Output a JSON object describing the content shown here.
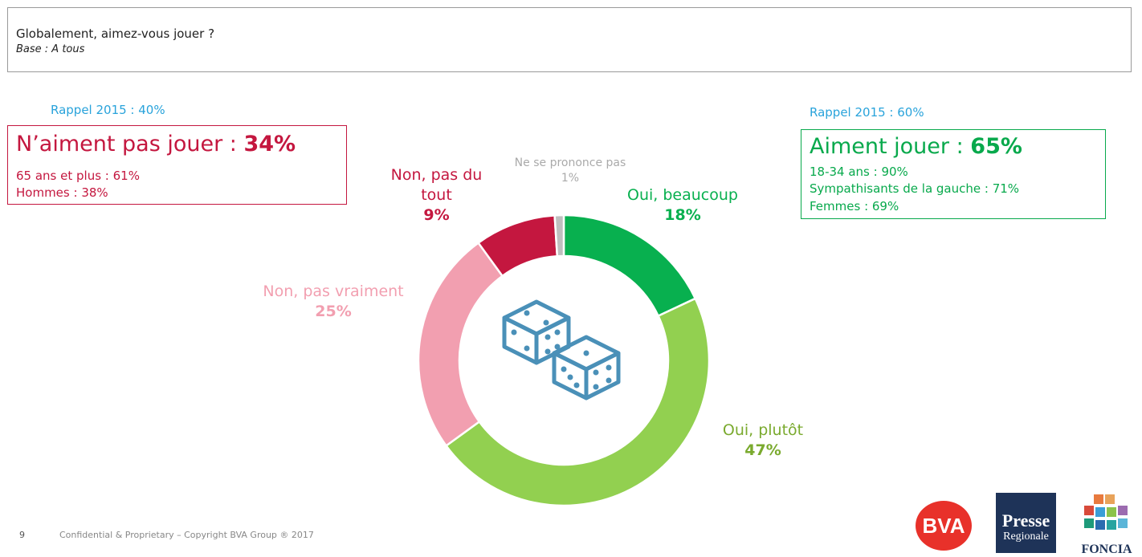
{
  "question": {
    "title": "Globalement, aimez-vous jouer ?",
    "base": "Base : A tous"
  },
  "left_summary": {
    "rappel": "Rappel 2015 : 40%",
    "heading_text": "N’aiment pas jouer : ",
    "heading_value": "34%",
    "lines": [
      "65 ans et plus : 61%",
      "Hommes : 38%"
    ],
    "color": "#c4173f"
  },
  "right_summary": {
    "rappel": "Rappel 2015 : 60%",
    "heading_text": "Aiment jouer : ",
    "heading_value": "65%",
    "lines": [
      "18-34 ans : 90%",
      "Sympathisants de la gauche : 71%",
      "Femmes : 69%"
    ],
    "color": "#08a94c"
  },
  "chart_data": {
    "type": "pie",
    "variant": "donut",
    "title": "",
    "center_icon": "dice-icon",
    "slices": [
      {
        "name": "Oui, beaucoup",
        "label": "18%",
        "value": 18,
        "color": "#08b04f"
      },
      {
        "name": "Oui, plutôt",
        "label": "47%",
        "value": 47,
        "color": "#92d050"
      },
      {
        "name": "Non, pas vraiment",
        "label": "25%",
        "value": 25,
        "color": "#f29fb0"
      },
      {
        "name": "Non, pas du tout",
        "label": "9%",
        "value": 9,
        "color": "#c4173f"
      },
      {
        "name": "Ne se prononce pas",
        "label": "1%",
        "value": 1,
        "color": "#bfbfbf"
      }
    ]
  },
  "footer": {
    "page_number": "9",
    "copyright": "Confidential & Proprietary – Copyright BVA Group ®  2017"
  },
  "logos": {
    "bva": "BVA",
    "presse_line1": "Presse",
    "presse_line2": "Regionale",
    "foncia": "FONCIA"
  }
}
